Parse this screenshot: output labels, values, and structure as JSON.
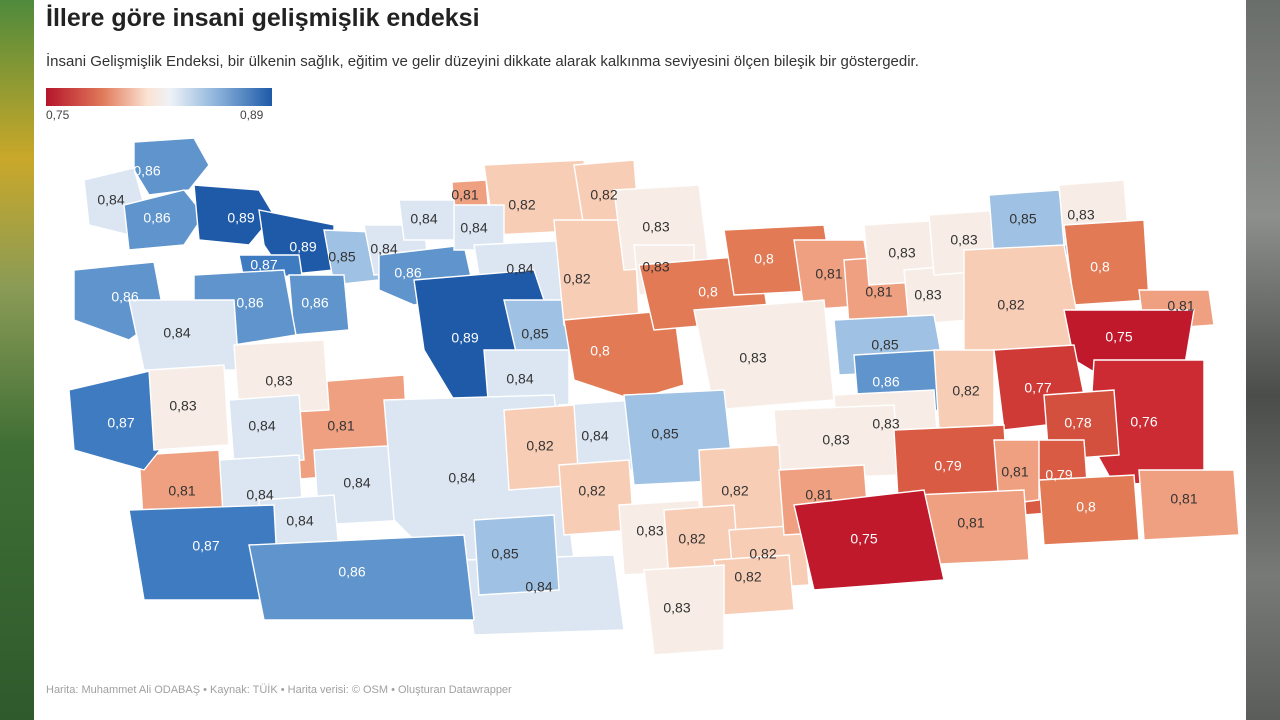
{
  "title": "İllere göre insani gelişmişlik endeksi",
  "subtitle": "İnsani Gelişmişlik Endeksi, bir ülkenin sağlık, eğitim ve gelir düzeyini dikkate alarak kalkınma seviyesini ölçen bileşik bir göstergedir.",
  "legend": {
    "min": "0,75",
    "max": "0,89"
  },
  "footer": "Harita: Muhammet Ali ODABAŞ • Kaynak: TÜİK • Harita verisi: © OSM • Oluşturan Datawrapper",
  "colors": {
    "0.75": "#c0192c",
    "0.76": "#cc2b33",
    "0.77": "#d03a36",
    "0.78": "#d4503e",
    "0.79": "#d95b43",
    "0.80": "#e27a55",
    "0.81": "#efa081",
    "0.82": "#f8cdb6",
    "0.83": "#f7ede6",
    "0.84": "#dbe6f2",
    "0.85": "#9fc1e3",
    "0.86": "#5f94cc",
    "0.87": "#3f7bc0",
    "0.89": "#1e5aa8"
  },
  "chart_data": {
    "type": "choropleth",
    "metric": "İnsani gelişmişlik endeksi",
    "scale_range": [
      0.75,
      0.89
    ],
    "labels": [
      "0,86",
      "0,84",
      "0,86",
      "0,89",
      "0,89",
      "0,87",
      "0,85",
      "0,84",
      "0,86",
      "0,81",
      "0,82",
      "0,82",
      "0,84",
      "0,84",
      "0,84",
      "0,86",
      "0,86",
      "0,86",
      "0,84",
      "0,89",
      "0,85",
      "0,84",
      "0,82",
      "0,8",
      "0,83",
      "0,83",
      "0,8",
      "0,8",
      "0,81",
      "0,81",
      "0,83",
      "0,83",
      "0,83",
      "0,85",
      "0,83",
      "0,8",
      "0,82",
      "0,81",
      "0,75",
      "0,85",
      "0,86",
      "0,82",
      "0,77",
      "0,76",
      "0,78",
      "0,83",
      "0,83",
      "0,81",
      "0,83",
      "0,84",
      "0,84",
      "0,81",
      "0,84",
      "0,87",
      "0,83",
      "0,84",
      "0,84",
      "0,84",
      "0,87",
      "0,86",
      "0,85",
      "0,84",
      "0,82",
      "0,82",
      "0,83",
      "0,85",
      "0,83",
      "0,82",
      "0,82",
      "0,82",
      "0,82",
      "0,79",
      "0,81",
      "0,79",
      "0,8",
      "0,81",
      "0,81",
      "0,81",
      "0,75",
      "0,83"
    ]
  }
}
